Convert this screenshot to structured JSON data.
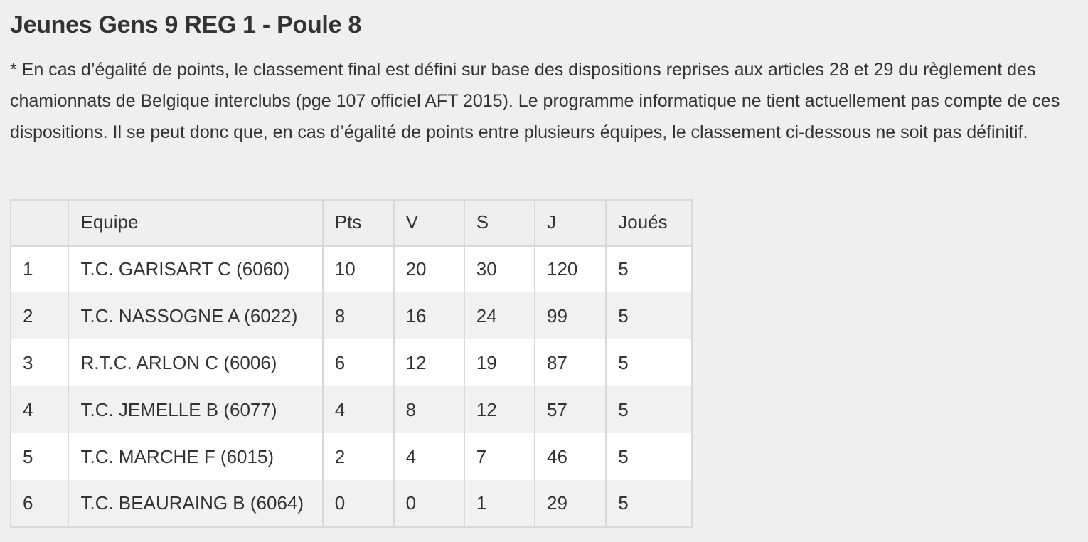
{
  "page": {
    "title": "Jeunes Gens 9 REG 1 - Poule 8",
    "note": "* En cas d’égalité de points, le classement final est défini sur base des dispositions reprises aux articles 28 et 29 du règlement des chamionnats de Belgique interclubs (pge 107 officiel AFT 2015). Le programme informatique ne tient actuellement pas compte de ces dispositions. Il se peut donc que, en cas d’égalité de points entre plusieurs équipes, le classement ci-dessous ne soit pas définitif."
  },
  "table": {
    "headers": {
      "rank": "",
      "team": "Equipe",
      "pts": "Pts",
      "v": "V",
      "s": "S",
      "j": "J",
      "joues": "Joués"
    },
    "rows": [
      {
        "rank": "1",
        "team": "T.C. GARISART C (6060)",
        "pts": "10",
        "v": "20",
        "s": "30",
        "j": "120",
        "joues": "5"
      },
      {
        "rank": "2",
        "team": "T.C. NASSOGNE A (6022)",
        "pts": "8",
        "v": "16",
        "s": "24",
        "j": "99",
        "joues": "5"
      },
      {
        "rank": "3",
        "team": "R.T.C. ARLON C (6006)",
        "pts": "6",
        "v": "12",
        "s": "19",
        "j": "87",
        "joues": "5"
      },
      {
        "rank": "4",
        "team": "T.C. JEMELLE B (6077)",
        "pts": "4",
        "v": "8",
        "s": "12",
        "j": "57",
        "joues": "5"
      },
      {
        "rank": "5",
        "team": "T.C. MARCHE F (6015)",
        "pts": "2",
        "v": "4",
        "s": "7",
        "j": "46",
        "joues": "5"
      },
      {
        "rank": "6",
        "team": "T.C. BEAURAING B (6064)",
        "pts": "0",
        "v": "0",
        "s": "1",
        "j": "29",
        "joues": "5"
      }
    ]
  }
}
